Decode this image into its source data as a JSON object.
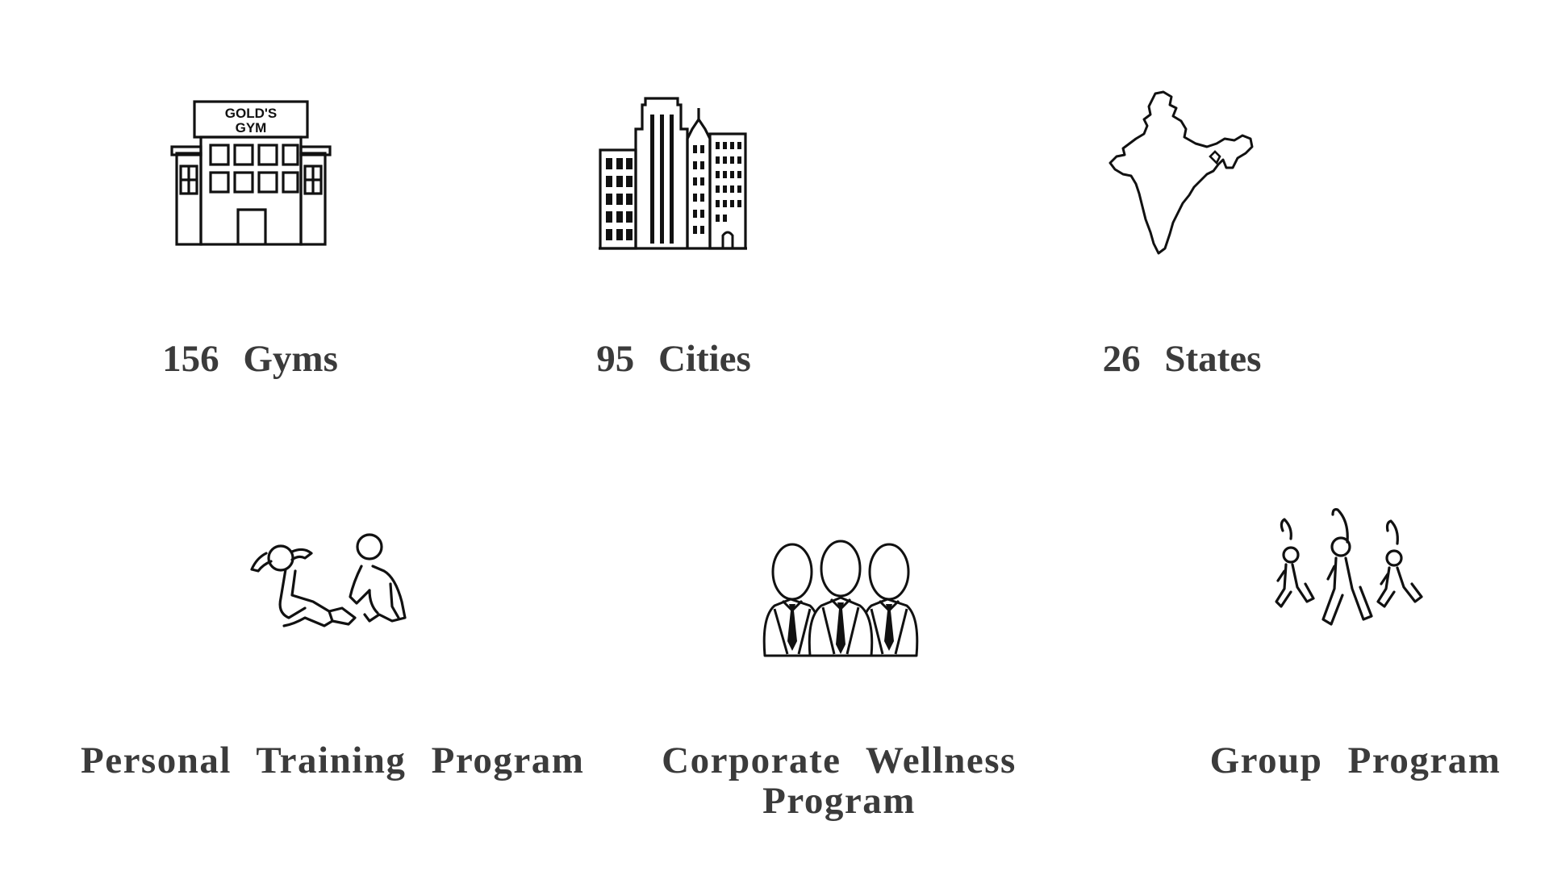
{
  "stats": [
    {
      "value": "156",
      "label": "Gyms",
      "icon": "gym-building-icon",
      "sign_line1": "GOLD'S",
      "sign_line2": "GYM"
    },
    {
      "value": "95",
      "label": "Cities",
      "icon": "city-skyline-icon"
    },
    {
      "value": "26",
      "label": "States",
      "icon": "india-map-icon"
    }
  ],
  "programs": [
    {
      "label": "Personal Training Program",
      "icon": "personal-training-icon"
    },
    {
      "label": "Corporate Wellness Program",
      "icon": "corporate-team-icon"
    },
    {
      "label": "Group Program",
      "icon": "group-exercise-icon"
    }
  ]
}
